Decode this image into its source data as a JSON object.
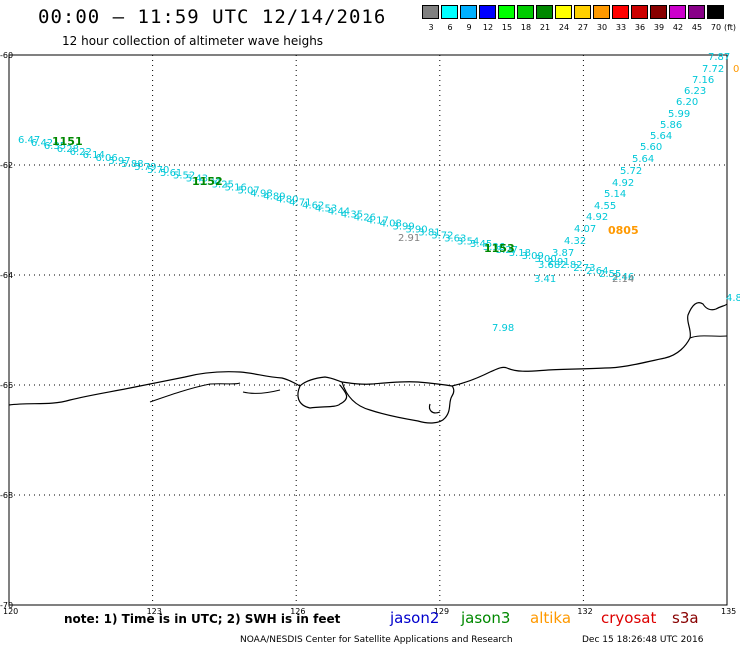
{
  "header": {
    "title": "00:00 – 11:59 UTC 12/14/2016",
    "subtitle": "12 hour collection of altimeter wave heighs"
  },
  "legend": {
    "unit": "(ft)",
    "bins": [
      {
        "label": "3",
        "color": "#808080"
      },
      {
        "label": "6",
        "color": "#00ffff"
      },
      {
        "label": "9",
        "color": "#00b0ff"
      },
      {
        "label": "12",
        "color": "#0000ff"
      },
      {
        "label": "15",
        "color": "#00ff00"
      },
      {
        "label": "18",
        "color": "#00cc00"
      },
      {
        "label": "21",
        "color": "#008800"
      },
      {
        "label": "24",
        "color": "#ffff00"
      },
      {
        "label": "27",
        "color": "#ffd000"
      },
      {
        "label": "30",
        "color": "#ff9900"
      },
      {
        "label": "33",
        "color": "#ff0000"
      },
      {
        "label": "36",
        "color": "#cc0000"
      },
      {
        "label": "39",
        "color": "#880000"
      },
      {
        "label": "42",
        "color": "#cc00cc"
      },
      {
        "label": "45",
        "color": "#880088"
      },
      {
        "label": "70",
        "color": "#000000"
      }
    ]
  },
  "map": {
    "lon_ticks": [
      "120",
      "123",
      "126",
      "129",
      "132",
      "135"
    ],
    "lat_ticks": [
      "-60",
      "-62",
      "-64",
      "-66",
      "-68",
      "-70"
    ],
    "colors": {
      "track": "#00c8d8",
      "time": "#008800",
      "orange": "#ff9900",
      "gray": "#808080"
    },
    "time_labels": [
      {
        "text": "1151",
        "color_key": "time"
      },
      {
        "text": "1152",
        "color_key": "time"
      },
      {
        "text": "1153",
        "color_key": "time"
      },
      {
        "text": "0805",
        "color_key": "orange"
      }
    ],
    "track_a_values": [
      "6.47",
      "6.42",
      "6.35",
      "6.28",
      "6.22",
      "6.14",
      "6.06",
      "5.97",
      "5.88",
      "5.79",
      "5.70",
      "5.61",
      "5.52",
      "5.43",
      "5.34",
      "5.25",
      "5.16",
      "5.07",
      "4.98",
      "4.89",
      "4.80",
      "4.71",
      "4.62",
      "4.53",
      "4.44",
      "4.35",
      "4.26",
      "4.17",
      "4.08",
      "3.99",
      "3.90",
      "3.81",
      "3.72",
      "3.63",
      "3.54",
      "3.45",
      "3.36",
      "3.27",
      "3.18",
      "3.09",
      "3.00",
      "2.91",
      "2.82",
      "2.73",
      "2.64",
      "2.55",
      "2.46"
    ],
    "track_b_values": [
      "7.87",
      "7.72",
      "7.16",
      "6.23",
      "6.20",
      "5.99",
      "5.86",
      "5.64",
      "5.60",
      "5.64",
      "5.72",
      "4.92",
      "5.14",
      "4.55",
      "4.92",
      "4.07",
      "4.32",
      "3.87",
      "3.68",
      "3.41"
    ],
    "extra_labels": [
      {
        "text": "7.98",
        "color_key": "track"
      },
      {
        "text": "2.91",
        "color_key": "gray"
      },
      {
        "text": "2.14",
        "color_key": "gray"
      },
      {
        "text": "4.8",
        "color_key": "track"
      },
      {
        "text": "0",
        "color_key": "orange"
      }
    ]
  },
  "footer": {
    "note": "note: 1) Time is in UTC; 2) SWH is in feet",
    "satellites": [
      {
        "name": "jason2",
        "color": "#0000cc"
      },
      {
        "name": "jason3",
        "color": "#008800"
      },
      {
        "name": "altika",
        "color": "#ff9900"
      },
      {
        "name": "cryosat",
        "color": "#dd0000"
      },
      {
        "name": "s3a",
        "color": "#880000"
      }
    ],
    "credit": "NOAA/NESDIS Center for Satellite Applications and Research",
    "timestamp": "Dec 15 18:26:48 UTC 2016"
  }
}
